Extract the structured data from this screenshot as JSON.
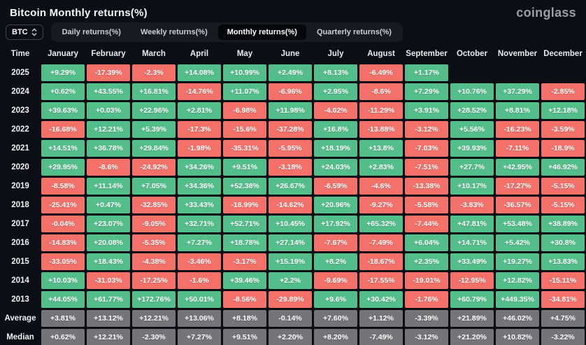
{
  "page": {
    "title": "Bitcoin Monthly returns(%)",
    "brand": "coinglass"
  },
  "controls": {
    "coin_selector": "BTC",
    "tabs": [
      {
        "label": "Daily returns(%)",
        "active": false
      },
      {
        "label": "Weekly returns(%)",
        "active": false
      },
      {
        "label": "Monthly returns(%)",
        "active": true
      },
      {
        "label": "Quarterly returns(%)",
        "active": false
      }
    ]
  },
  "chart_data": {
    "type": "heatmap",
    "title": "Bitcoin Monthly returns(%)",
    "columns": [
      "Time",
      "January",
      "February",
      "March",
      "April",
      "May",
      "June",
      "July",
      "August",
      "September",
      "October",
      "November",
      "December"
    ],
    "colors": {
      "positive": "#54be8b",
      "negative": "#f4716a",
      "summary": "#747479",
      "background": "#0b0e14"
    },
    "rows": [
      {
        "label": "2025",
        "summary": false,
        "values": [
          "+9.29%",
          "-17.39%",
          "-2.3%",
          "+14.08%",
          "+10.99%",
          "+2.49%",
          "+8.13%",
          "-6.49%",
          "+1.17%",
          "",
          "",
          ""
        ]
      },
      {
        "label": "2024",
        "summary": false,
        "values": [
          "+0.62%",
          "+43.55%",
          "+16.81%",
          "-14.76%",
          "+11.07%",
          "-6.96%",
          "+2.95%",
          "-8.6%",
          "+7.29%",
          "+10.76%",
          "+37.29%",
          "-2.85%"
        ]
      },
      {
        "label": "2023",
        "summary": false,
        "values": [
          "+39.63%",
          "+0.03%",
          "+22.96%",
          "+2.81%",
          "-6.98%",
          "+11.98%",
          "-4.02%",
          "-11.29%",
          "+3.91%",
          "+28.52%",
          "+8.81%",
          "+12.18%"
        ]
      },
      {
        "label": "2022",
        "summary": false,
        "values": [
          "-16.68%",
          "+12.21%",
          "+5.39%",
          "-17.3%",
          "-15.6%",
          "-37.28%",
          "+16.8%",
          "-13.88%",
          "-3.12%",
          "+5.56%",
          "-16.23%",
          "-3.59%"
        ]
      },
      {
        "label": "2021",
        "summary": false,
        "values": [
          "+14.51%",
          "+36.78%",
          "+29.84%",
          "-1.98%",
          "-35.31%",
          "-5.95%",
          "+18.19%",
          "+13.8%",
          "-7.03%",
          "+39.93%",
          "-7.11%",
          "-18.9%"
        ]
      },
      {
        "label": "2020",
        "summary": false,
        "values": [
          "+29.95%",
          "-8.6%",
          "-24.92%",
          "+34.26%",
          "+9.51%",
          "-3.18%",
          "+24.03%",
          "+2.83%",
          "-7.51%",
          "+27.7%",
          "+42.95%",
          "+46.92%"
        ]
      },
      {
        "label": "2019",
        "summary": false,
        "values": [
          "-8.58%",
          "+11.14%",
          "+7.05%",
          "+34.36%",
          "+52.38%",
          "+26.67%",
          "-6.59%",
          "-4.6%",
          "-13.38%",
          "+10.17%",
          "-17.27%",
          "-5.15%"
        ]
      },
      {
        "label": "2018",
        "summary": false,
        "values": [
          "-25.41%",
          "+0.47%",
          "-32.85%",
          "+33.43%",
          "-18.99%",
          "-14.62%",
          "+20.96%",
          "-9.27%",
          "-5.58%",
          "-3.83%",
          "-36.57%",
          "-5.15%"
        ]
      },
      {
        "label": "2017",
        "summary": false,
        "values": [
          "-0.04%",
          "+23.07%",
          "-9.05%",
          "+32.71%",
          "+52.71%",
          "+10.45%",
          "+17.92%",
          "+65.32%",
          "-7.44%",
          "+47.81%",
          "+53.48%",
          "+38.89%"
        ]
      },
      {
        "label": "2016",
        "summary": false,
        "values": [
          "-14.83%",
          "+20.08%",
          "-5.35%",
          "+7.27%",
          "+18.78%",
          "+27.14%",
          "-7.67%",
          "-7.49%",
          "+6.04%",
          "+14.71%",
          "+5.42%",
          "+30.8%"
        ]
      },
      {
        "label": "2015",
        "summary": false,
        "values": [
          "-33.05%",
          "+18.43%",
          "-4.38%",
          "-3.46%",
          "-3.17%",
          "+15.19%",
          "+8.2%",
          "-18.67%",
          "+2.35%",
          "+33.49%",
          "+19.27%",
          "+13.83%"
        ]
      },
      {
        "label": "2014",
        "summary": false,
        "values": [
          "+10.03%",
          "-31.03%",
          "-17.25%",
          "-1.6%",
          "+39.46%",
          "+2.2%",
          "-9.69%",
          "-17.55%",
          "-19.01%",
          "-12.95%",
          "+12.82%",
          "-15.11%"
        ]
      },
      {
        "label": "2013",
        "summary": false,
        "values": [
          "+44.05%",
          "+61.77%",
          "+172.76%",
          "+50.01%",
          "-8.56%",
          "-29.89%",
          "+9.6%",
          "+30.42%",
          "-1.76%",
          "+60.79%",
          "+449.35%",
          "-34.81%"
        ]
      },
      {
        "label": "Average",
        "summary": true,
        "values": [
          "+3.81%",
          "+13.12%",
          "+12.21%",
          "+13.06%",
          "+8.18%",
          "-0.14%",
          "+7.60%",
          "+1.12%",
          "-3.39%",
          "+21.89%",
          "+46.02%",
          "+4.75%"
        ]
      },
      {
        "label": "Median",
        "summary": true,
        "values": [
          "+0.62%",
          "+12.21%",
          "-2.30%",
          "+7.27%",
          "+9.51%",
          "+2.20%",
          "+8.20%",
          "-7.49%",
          "-3.12%",
          "+21.20%",
          "+10.82%",
          "-3.22%"
        ]
      }
    ]
  }
}
